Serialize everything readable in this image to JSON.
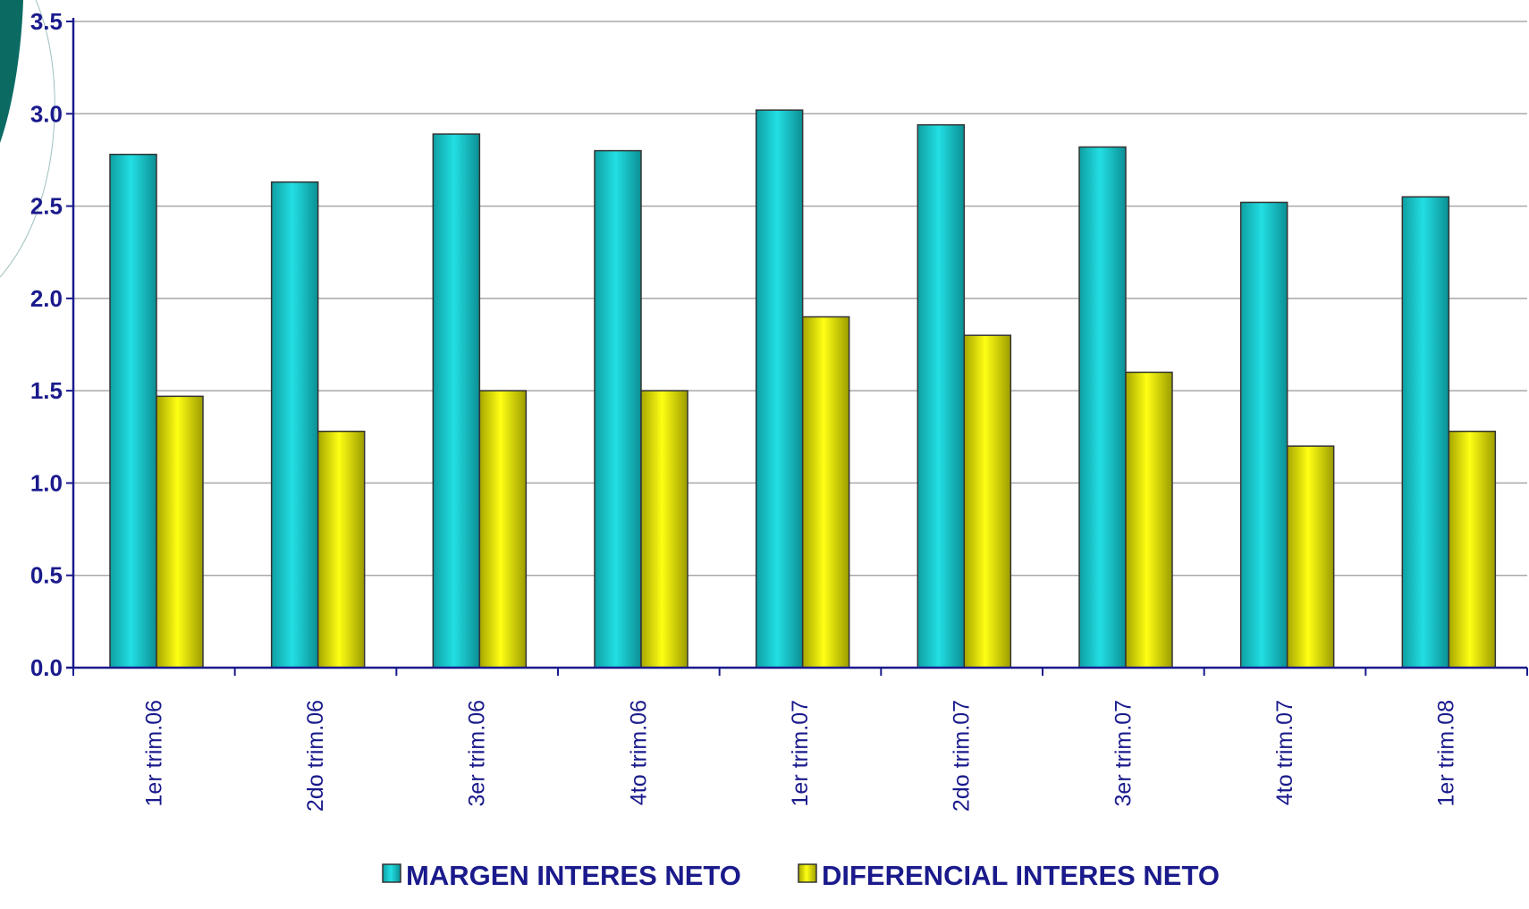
{
  "chart_data": {
    "type": "bar",
    "categories": [
      "1er trim.06",
      "2do trim.06",
      "3er trim.06",
      "4to trim.06",
      "1er trim.07",
      "2do trim.07",
      "3er trim.07",
      "4to trim.07",
      "1er trim.08"
    ],
    "series": [
      {
        "name": "MARGEN INTERES NETO",
        "values": [
          2.78,
          2.63,
          2.89,
          2.8,
          3.02,
          2.94,
          2.82,
          2.52,
          2.55
        ],
        "color": "#19c8c8"
      },
      {
        "name": "DIFERENCIAL INTERES NETO",
        "values": [
          1.47,
          1.28,
          1.5,
          1.5,
          1.9,
          1.8,
          1.6,
          1.2,
          1.28
        ],
        "color": "#e6e600"
      }
    ],
    "yticks": [
      "0.0",
      "0.5",
      "1.0",
      "1.5",
      "2.0",
      "2.5",
      "3.0",
      "3.5"
    ],
    "ylim": [
      0,
      3.5
    ],
    "grid": true,
    "legend_position": "bottom",
    "axis_color": "#1a1a8c"
  }
}
